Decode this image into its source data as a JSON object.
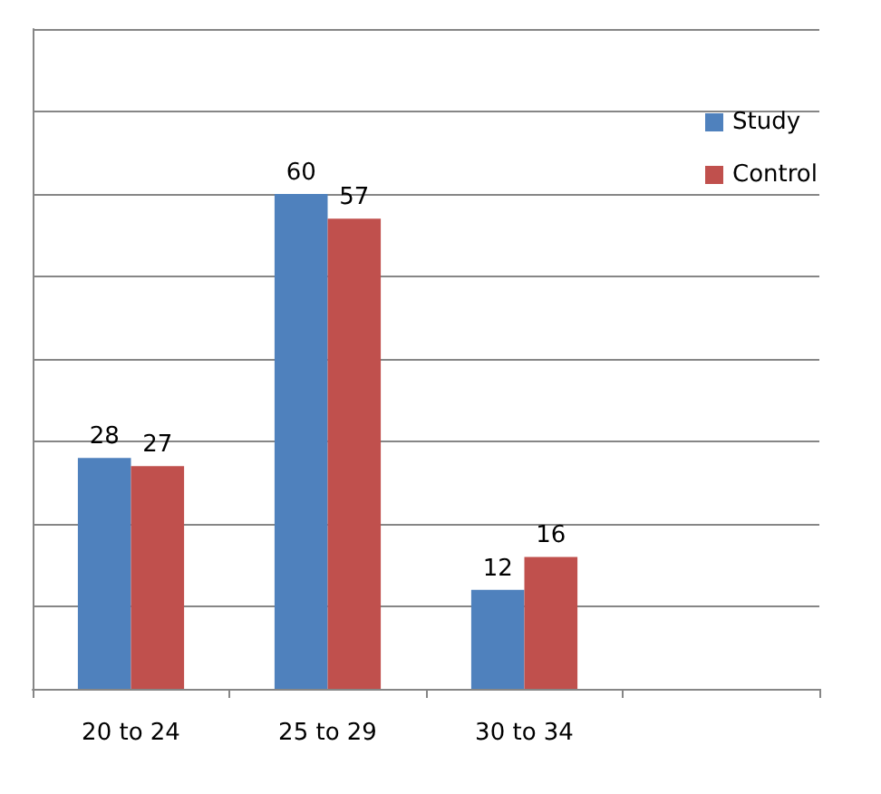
{
  "chart_data": {
    "type": "bar",
    "categories": [
      "20 to 24",
      "25 to 29",
      "30 to 34",
      null
    ],
    "series": [
      {
        "name": "Study",
        "color": "#4f81bd",
        "values": [
          28,
          60,
          12,
          null
        ]
      },
      {
        "name": "Control",
        "color": "#c0504d",
        "values": [
          27,
          57,
          16,
          null
        ]
      }
    ],
    "ylim": [
      0,
      80
    ],
    "yticks": [
      {
        "value": 0,
        "label": null
      },
      {
        "value": 10,
        "label": null
      },
      {
        "value": 20,
        "label": null
      },
      {
        "value": 30,
        "label": null
      },
      {
        "value": 40,
        "label": null
      },
      {
        "value": 50,
        "label": null
      },
      {
        "value": 60,
        "label": null
      },
      {
        "value": 70,
        "label": null
      },
      {
        "value": 80,
        "label": null
      }
    ],
    "tick_labels": "x",
    "grid": "y",
    "legend": "top right",
    "data_labels": true
  }
}
